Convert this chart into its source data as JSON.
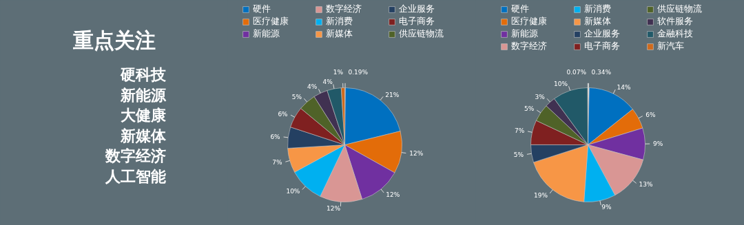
{
  "chart_data": [
    {
      "type": "other",
      "title": "重点关注",
      "annotations": [
        "硬科技",
        "新能源",
        "大健康",
        "新媒体",
        "数字经济",
        "人工智能"
      ]
    },
    {
      "type": "pie",
      "legend": "top",
      "categories": [
        null,
        "硬件",
        "医疗健康",
        "新能源",
        "数字经济",
        "新消费",
        "新媒体",
        "企业服务",
        "电子商务",
        "供应链物流",
        null,
        null,
        null
      ],
      "values": [
        0.19,
        21,
        12,
        12,
        12,
        10,
        7,
        6,
        6,
        5,
        4,
        4,
        1
      ],
      "value_labels": [
        "0.19%",
        "21%",
        "12%",
        "12%",
        "12%",
        "10%",
        "7%",
        "6%",
        "6%",
        "5%",
        "4%",
        "4%",
        "1%"
      ],
      "colors": [
        "#f2f2f2",
        "#0070c0",
        "#e36c09",
        "#7030a0",
        "#d99694",
        "#00b0f0",
        "#f79646",
        "#244062",
        "#7f2020",
        "#4f6228",
        "#403151",
        "#215968",
        "#d06a1c"
      ]
    },
    {
      "type": "pie",
      "legend": "top",
      "categories": [
        null,
        "硬件",
        "医疗健康",
        "新能源",
        "数字经济",
        "新消费",
        "新媒体",
        "企业服务",
        "电子商务",
        "供应链物流",
        "软件服务",
        "金融科技",
        "新汽车"
      ],
      "values": [
        0.34,
        14,
        6,
        9,
        13,
        9,
        19,
        5,
        7,
        5,
        3,
        10,
        0.07
      ],
      "value_labels": [
        "0.34%",
        "14%",
        "6%",
        "9%",
        "13%",
        "9%",
        "19%",
        "5%",
        "7%",
        "5%",
        "3%",
        "10%",
        "0.07%"
      ],
      "colors": [
        "#f2f2f2",
        "#0070c0",
        "#e36c09",
        "#7030a0",
        "#d99694",
        "#00b0f0",
        "#f79646",
        "#244062",
        "#7f2020",
        "#4f6228",
        "#403151",
        "#215968",
        "#d06a1c"
      ]
    }
  ]
}
